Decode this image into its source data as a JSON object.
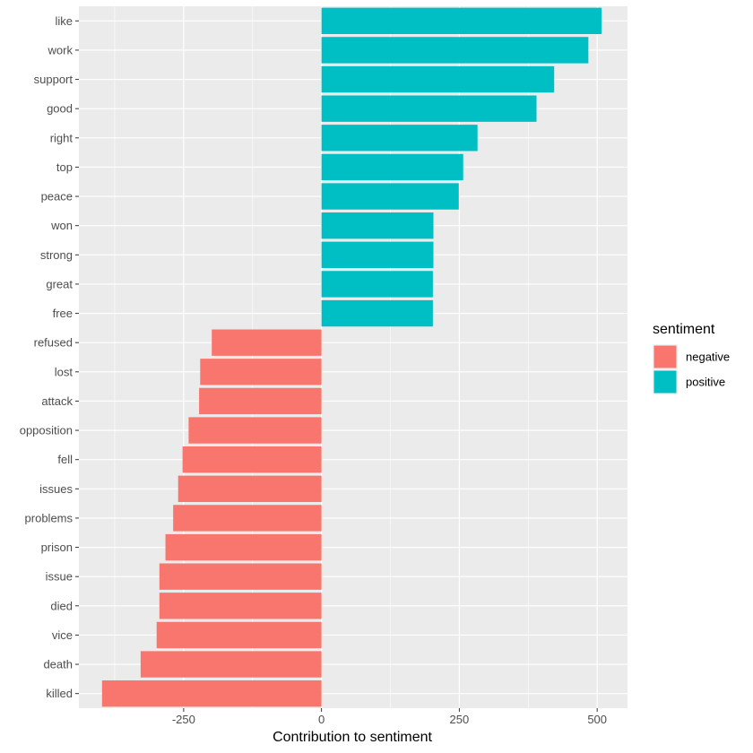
{
  "chart_data": {
    "type": "bar",
    "orientation": "horizontal",
    "title": "",
    "xlabel": "Contribution to sentiment",
    "ylabel": "",
    "xlim": [
      -440,
      555
    ],
    "x_ticks": [
      -250,
      0,
      250,
      500
    ],
    "x_tick_labels": [
      "-250",
      "0",
      "250",
      "500"
    ],
    "grid": true,
    "legend": {
      "title": "sentiment",
      "position": "right",
      "entries": [
        {
          "name": "negative",
          "color": "#F8766D"
        },
        {
          "name": "positive",
          "color": "#00BFC4"
        }
      ]
    },
    "categories": [
      "like",
      "work",
      "support",
      "good",
      "right",
      "top",
      "peace",
      "won",
      "strong",
      "great",
      "free",
      "refused",
      "lost",
      "attack",
      "opposition",
      "fell",
      "issues",
      "problems",
      "prison",
      "issue",
      "died",
      "vice",
      "death",
      "killed"
    ],
    "values": [
      508,
      484,
      422,
      390,
      283,
      257,
      249,
      203,
      203,
      202,
      202,
      -199,
      -220,
      -222,
      -241,
      -252,
      -260,
      -269,
      -283,
      -294,
      -294,
      -299,
      -328,
      -398
    ],
    "sentiment": [
      "positive",
      "positive",
      "positive",
      "positive",
      "positive",
      "positive",
      "positive",
      "positive",
      "positive",
      "positive",
      "positive",
      "negative",
      "negative",
      "negative",
      "negative",
      "negative",
      "negative",
      "negative",
      "negative",
      "negative",
      "negative",
      "negative",
      "negative",
      "negative"
    ]
  }
}
